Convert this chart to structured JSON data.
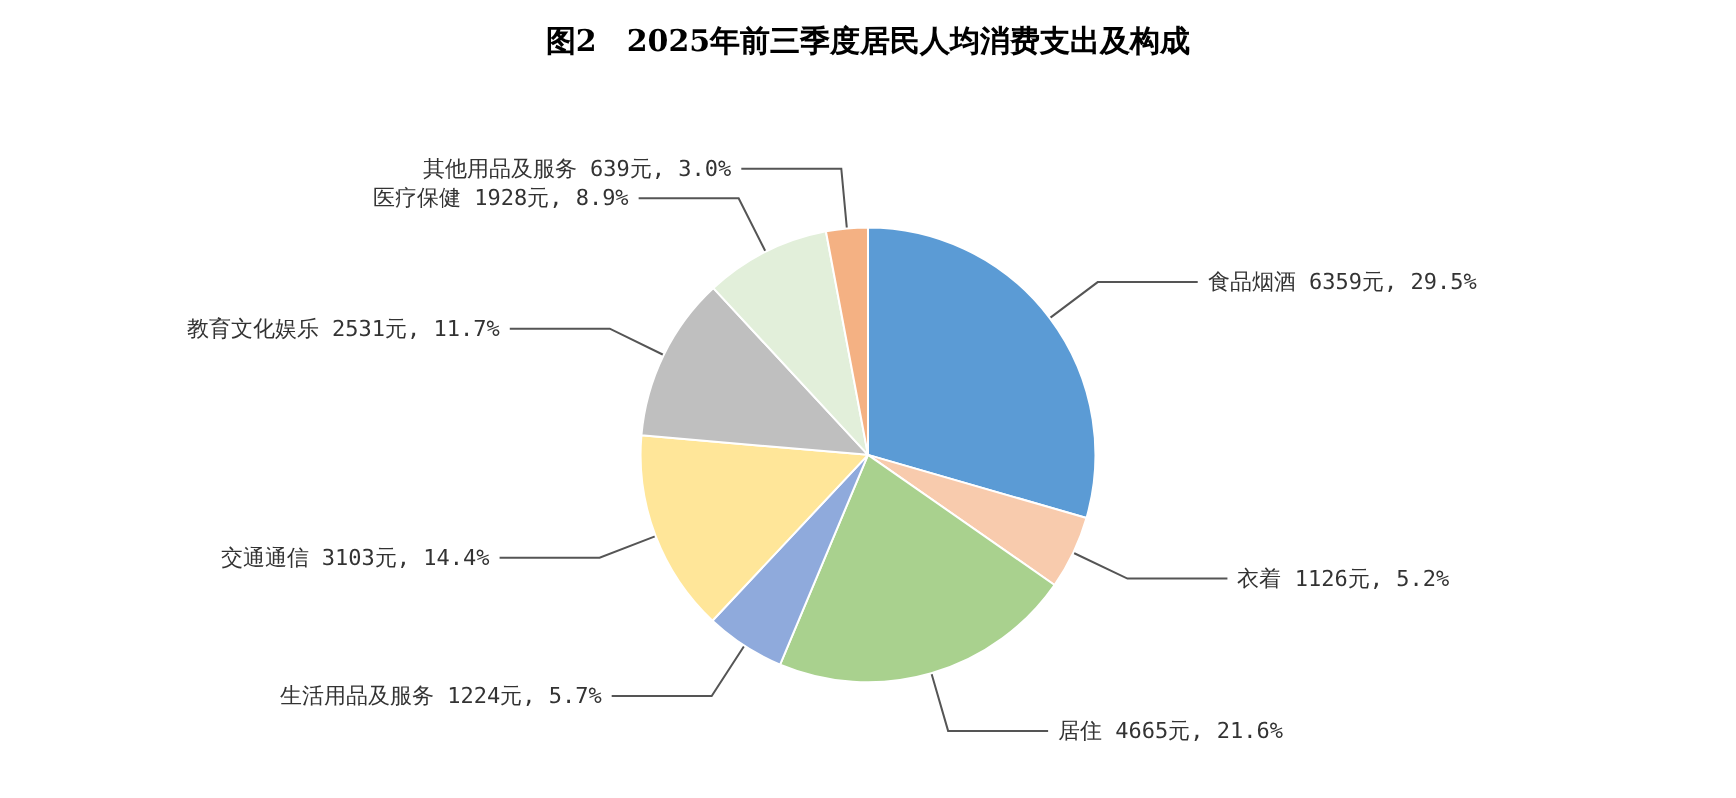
{
  "chart_data": {
    "type": "pie",
    "title": "图2　2025年前三季度居民人均消费支出及构成",
    "categories": [
      "食品烟酒",
      "衣着",
      "居住",
      "生活用品及服务",
      "交通通信",
      "教育文化娱乐",
      "医疗保健",
      "其他用品及服务"
    ],
    "values": [
      6359,
      1126,
      4665,
      1224,
      3103,
      2531,
      1928,
      639
    ],
    "value_labels": [
      "6359元, 29.5%",
      "1126元, 5.2%",
      "4665元, 21.6%",
      "1224元, 5.7%",
      "3103元, 14.4%",
      "2531元, 11.7%",
      "1928元, 8.9%",
      "639元, 3.0%"
    ],
    "colors": [
      "#5b9bd5",
      "#f8cbad",
      "#a9d18e",
      "#8faadc",
      "#ffe699",
      "#bfbfbf",
      "#e2efda",
      "#f4b183"
    ],
    "legend": false
  }
}
